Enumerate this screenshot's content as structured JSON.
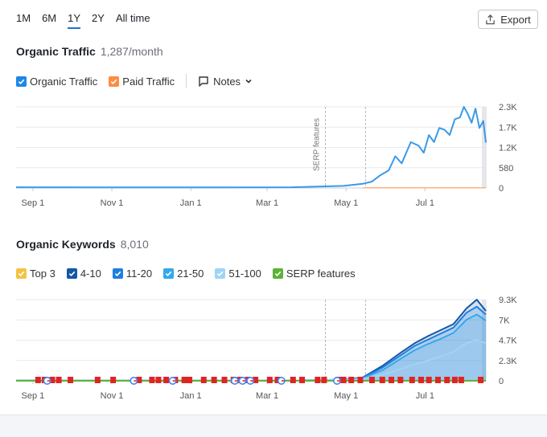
{
  "range_tabs": [
    "1M",
    "6M",
    "1Y",
    "2Y",
    "All time"
  ],
  "active_range": "1Y",
  "export_label": "Export",
  "traffic": {
    "title": "Organic Traffic",
    "value": "1,287/month",
    "legend": [
      {
        "label": "Organic Traffic",
        "color": "#1e88e5"
      },
      {
        "label": "Paid Traffic",
        "color": "#ff8c42"
      }
    ],
    "notes_label": "Notes",
    "serp_label": "SERP features"
  },
  "keywords": {
    "title": "Organic Keywords",
    "value": "8,010",
    "legend": [
      {
        "label": "Top 3",
        "color": "#f5c342"
      },
      {
        "label": "4-10",
        "color": "#1456a8"
      },
      {
        "label": "11-20",
        "color": "#1e7fe0"
      },
      {
        "label": "21-50",
        "color": "#34a8ee"
      },
      {
        "label": "51-100",
        "color": "#9fd4f6"
      },
      {
        "label": "SERP features",
        "color": "#5cb335"
      }
    ]
  },
  "chart_data": [
    {
      "type": "line",
      "title": "Organic Traffic",
      "x_ticks": [
        "Sep 1",
        "Nov 1",
        "Jan 1",
        "Mar 1",
        "May 1",
        "Jul 1"
      ],
      "y_ticks": [
        "2.3K",
        "1.7K",
        "1.2K",
        "580",
        "0"
      ],
      "ylim": [
        0,
        2300
      ],
      "x_range_days": [
        -13,
        350
      ],
      "markers": [
        {
          "day": 226,
          "label": "SERP features"
        },
        {
          "day": 257,
          "label": ""
        }
      ],
      "series": [
        {
          "name": "Organic Traffic",
          "color": "#3a9ae8",
          "x": [
            -13,
            100,
            200,
            240,
            255,
            262,
            268,
            275,
            280,
            285,
            292,
            298,
            302,
            306,
            310,
            314,
            318,
            322,
            326,
            330,
            333,
            336,
            339,
            342,
            345,
            348,
            350
          ],
          "y": [
            20,
            15,
            20,
            60,
            120,
            180,
            350,
            500,
            900,
            700,
            1300,
            1200,
            1000,
            1500,
            1300,
            1700,
            1650,
            1500,
            1950,
            2000,
            2300,
            2100,
            1850,
            2250,
            1700,
            1900,
            1287
          ]
        },
        {
          "name": "Paid Traffic",
          "color": "#ffb27a",
          "x": [
            255,
            350
          ],
          "y": [
            5,
            5
          ]
        }
      ]
    },
    {
      "type": "area",
      "title": "Organic Keywords",
      "x_ticks": [
        "Sep 1",
        "Nov 1",
        "Jan 1",
        "Mar 1",
        "May 1",
        "Jul 1"
      ],
      "y_ticks": [
        "9.3K",
        "7K",
        "4.7K",
        "2.3K",
        "0"
      ],
      "ylim": [
        0,
        9300
      ],
      "x_range_days": [
        -13,
        350
      ],
      "markers": [
        {
          "day": 226,
          "label": ""
        },
        {
          "day": 257,
          "label": ""
        }
      ],
      "x": [
        -13,
        200,
        240,
        255,
        270,
        285,
        295,
        305,
        315,
        325,
        335,
        343,
        350
      ],
      "series": [
        {
          "name": "51-100",
          "color": "#9fd4f6",
          "values": [
            30,
            40,
            100,
            220,
            700,
            1400,
            1900,
            2300,
            2800,
            3300,
            4300,
            4700,
            4300
          ]
        },
        {
          "name": "21-50",
          "color": "#34a8ee",
          "values": [
            30,
            40,
            110,
            300,
            1200,
            2600,
            3500,
            4200,
            4800,
            5500,
            7000,
            7600,
            6900
          ]
        },
        {
          "name": "11-20",
          "color": "#1e7fe0",
          "values": [
            30,
            40,
            120,
            350,
            1500,
            3000,
            4000,
            4700,
            5400,
            6100,
            7800,
            8500,
            7600
          ]
        },
        {
          "name": "4-10",
          "color": "#1456a8",
          "values": [
            30,
            40,
            130,
            400,
            1700,
            3300,
            4300,
            5100,
            5800,
            6500,
            8300,
            9300,
            8010
          ]
        }
      ],
      "serp_flags_days": [
        4,
        9,
        15,
        20,
        29,
        50,
        62,
        82,
        92,
        97,
        103,
        110,
        117,
        121,
        132,
        140,
        148,
        155,
        160,
        166,
        172,
        183,
        189,
        201,
        208,
        220,
        225,
        236,
        240,
        246,
        253,
        262,
        270,
        277,
        284,
        293,
        300,
        306,
        313,
        320,
        326,
        331,
        346
      ],
      "serp_google_days": [
        11,
        78,
        108,
        156,
        162,
        168,
        192,
        235
      ]
    }
  ]
}
